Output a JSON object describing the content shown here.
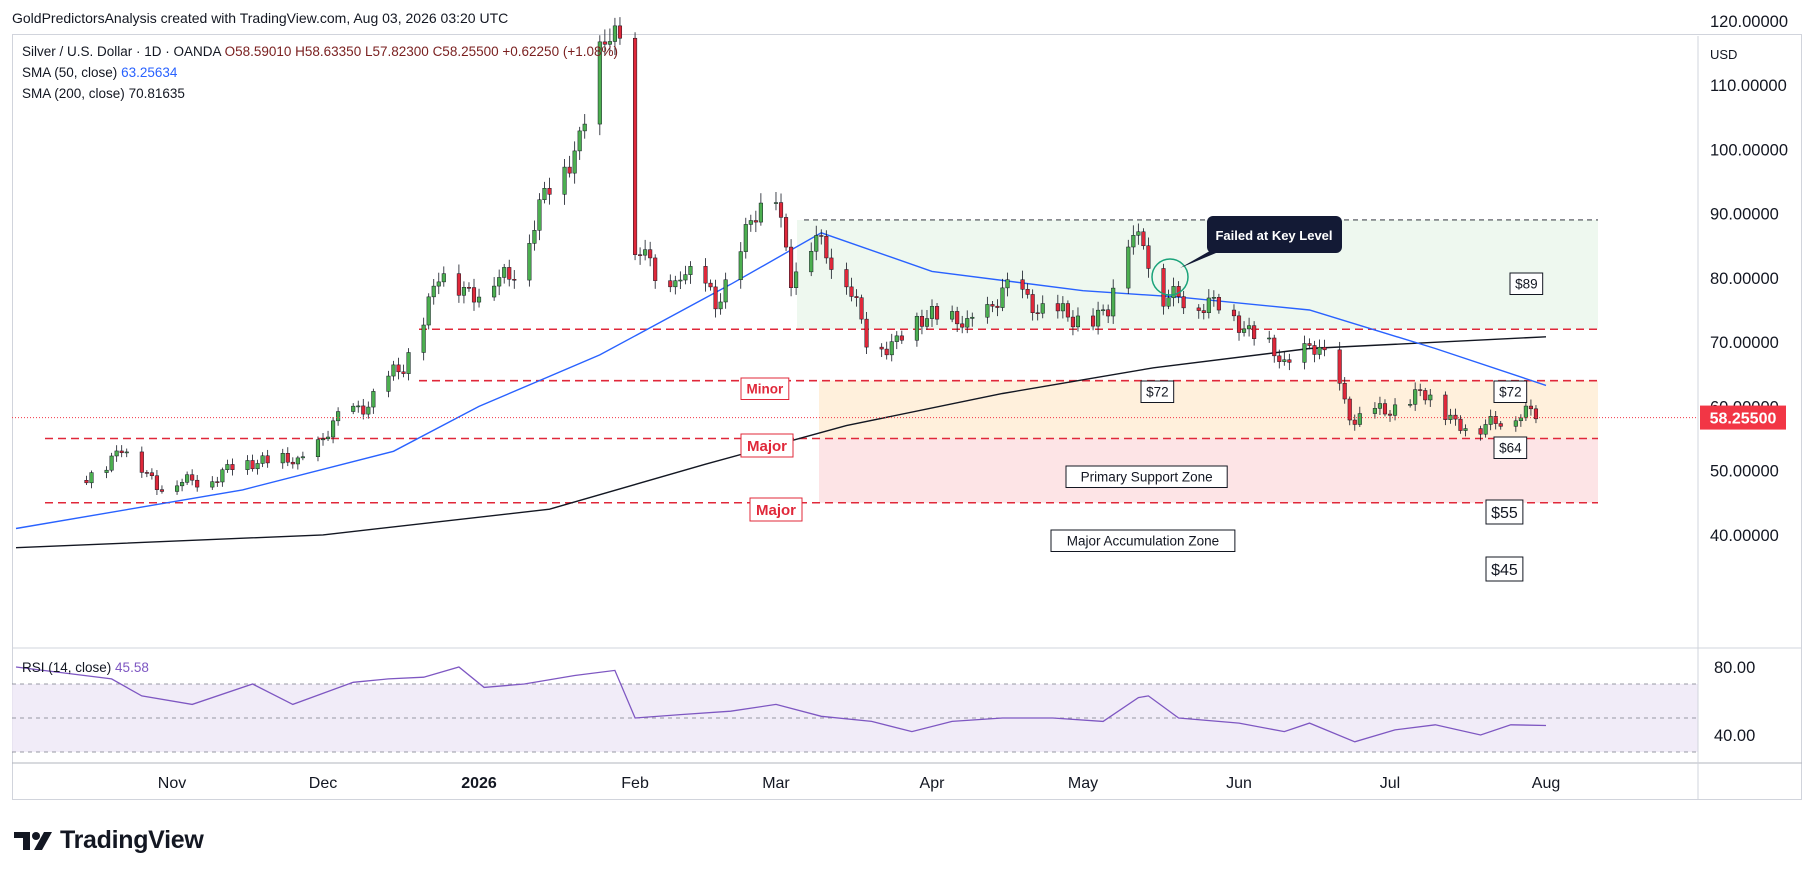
{
  "header": {
    "attribution": "GoldPredictorsAnalysis created with TradingView.com, Aug 03, 2026 03:20 UTC"
  },
  "legend": {
    "symbol": "Silver / U.S. Dollar · 1D · OANDA",
    "open": "O58.59010",
    "high": "H58.63350",
    "low": "L57.82300",
    "close": "C58.25500",
    "change": "+0.62250 (+1.08%)",
    "sma50_label": "SMA (50, close)",
    "sma50_value": "63.25634",
    "sma200_label": "SMA (200, close)",
    "sma200_value": "70.81635",
    "rsi_label": "RSI (14, close)",
    "rsi_value": "45.58"
  },
  "price_axis": {
    "currency": "USD",
    "ticks": [
      "120.00000",
      "110.00000",
      "100.00000",
      "90.00000",
      "80.00000",
      "70.00000",
      "60.00000",
      "50.00000",
      "40.00000"
    ],
    "last_price": "58.25500"
  },
  "rsi_axis": {
    "ticks": [
      "80.00",
      "40.00"
    ]
  },
  "time_axis": {
    "labels": [
      "Nov",
      "Dec",
      "2026",
      "Feb",
      "Mar",
      "Apr",
      "May",
      "Jun",
      "Jul",
      "Aug"
    ]
  },
  "annotations": {
    "minor": "Minor",
    "major_1": "Major",
    "major_2": "Major",
    "primary_zone": "Primary Support Zone",
    "accumulation_zone": "Major Accumulation Zone",
    "failed_callout": "Failed at Key Level",
    "p89": "$89",
    "p72_left": "$72",
    "p72_right": "$72",
    "p64": "$64",
    "p55": "$55",
    "p45": "$45"
  },
  "branding": {
    "name": "TradingView"
  },
  "colors": {
    "up": "#4caf50",
    "down": "#e0283a",
    "sma50": "#2962ff",
    "sma200": "#131722",
    "level": "#e0283a",
    "rsi": "#7e57c2"
  },
  "chart_data": {
    "type": "candlestick",
    "symbol": "Silver / U.S. Dollar",
    "interval": "1D",
    "y_range": [
      35,
      122
    ],
    "levels": [
      89,
      72,
      64,
      55,
      45
    ],
    "zones": [
      {
        "label": "Primary Support Zone",
        "from": 55,
        "to": 64
      },
      {
        "label": "Major Accumulation Zone",
        "from": 45,
        "to": 55
      }
    ],
    "price_path": [
      [
        "2025-10-15",
        48.5
      ],
      [
        "2025-10-22",
        53.5
      ],
      [
        "2025-10-29",
        48
      ],
      [
        "2025-11-05",
        48
      ],
      [
        "2025-11-12",
        50
      ],
      [
        "2025-11-19",
        52
      ],
      [
        "2025-11-26",
        51
      ],
      [
        "2025-12-03",
        57
      ],
      [
        "2025-12-10",
        61
      ],
      [
        "2025-12-17",
        66
      ],
      [
        "2025-12-24",
        80
      ],
      [
        "2025-12-31",
        78
      ],
      [
        "2026-01-07",
        80
      ],
      [
        "2026-01-14",
        92
      ],
      [
        "2026-01-21",
        102
      ],
      [
        "2026-01-26",
        117
      ],
      [
        "2026-01-29",
        118
      ],
      [
        "2026-01-30",
        80
      ],
      [
        "2026-02-03",
        85
      ],
      [
        "2026-02-06",
        74
      ],
      [
        "2026-02-10",
        82
      ],
      [
        "2026-02-17",
        76
      ],
      [
        "2026-02-24",
        88
      ],
      [
        "2026-03-01",
        94
      ],
      [
        "2026-03-04",
        80
      ],
      [
        "2026-03-09",
        86
      ],
      [
        "2026-03-14",
        82
      ],
      [
        "2026-03-19",
        70
      ],
      [
        "2026-03-25",
        70
      ],
      [
        "2026-04-01",
        75
      ],
      [
        "2026-04-08",
        72
      ],
      [
        "2026-04-15",
        78
      ],
      [
        "2026-04-22",
        76
      ],
      [
        "2026-04-29",
        73
      ],
      [
        "2026-05-06",
        75
      ],
      [
        "2026-05-10",
        86
      ],
      [
        "2026-05-13",
        87
      ],
      [
        "2026-05-16",
        76
      ],
      [
        "2026-05-22",
        77
      ],
      [
        "2026-05-29",
        75
      ],
      [
        "2026-06-05",
        71
      ],
      [
        "2026-06-10",
        66
      ],
      [
        "2026-06-15",
        70
      ],
      [
        "2026-06-19",
        66
      ],
      [
        "2026-06-24",
        58
      ],
      [
        "2026-06-30",
        59
      ],
      [
        "2026-07-07",
        62
      ],
      [
        "2026-07-14",
        58
      ],
      [
        "2026-07-19",
        56
      ],
      [
        "2026-07-24",
        59
      ],
      [
        "2026-08-01",
        58.255
      ]
    ],
    "sma50": [
      [
        "2025-10-01",
        41
      ],
      [
        "2025-11-15",
        47
      ],
      [
        "2025-12-15",
        53
      ],
      [
        "2026-01-01",
        60
      ],
      [
        "2026-01-25",
        68
      ],
      [
        "2026-02-20",
        79
      ],
      [
        "2026-03-10",
        87
      ],
      [
        "2026-04-01",
        81
      ],
      [
        "2026-05-01",
        78
      ],
      [
        "2026-05-20",
        77
      ],
      [
        "2026-06-15",
        75
      ],
      [
        "2026-07-10",
        69
      ],
      [
        "2026-08-01",
        63.26
      ]
    ],
    "sma200": [
      [
        "2025-10-01",
        38
      ],
      [
        "2025-12-01",
        40
      ],
      [
        "2026-01-15",
        44
      ],
      [
        "2026-02-15",
        51
      ],
      [
        "2026-03-15",
        57
      ],
      [
        "2026-04-15",
        62
      ],
      [
        "2026-05-15",
        66
      ],
      [
        "2026-06-15",
        69
      ],
      [
        "2026-08-01",
        70.82
      ]
    ],
    "rsi": [
      [
        "2025-10-01",
        80
      ],
      [
        "2025-10-20",
        73
      ],
      [
        "2025-10-26",
        63
      ],
      [
        "2025-11-05",
        58
      ],
      [
        "2025-11-17",
        70
      ],
      [
        "2025-11-25",
        58
      ],
      [
        "2025-12-07",
        71
      ],
      [
        "2025-12-14",
        73
      ],
      [
        "2025-12-21",
        74
      ],
      [
        "2025-12-28",
        80
      ],
      [
        "2026-01-02",
        68
      ],
      [
        "2026-01-10",
        70
      ],
      [
        "2026-01-20",
        75
      ],
      [
        "2026-01-28",
        78
      ],
      [
        "2026-02-01",
        50
      ],
      [
        "2026-02-10",
        52
      ],
      [
        "2026-02-20",
        54
      ],
      [
        "2026-03-01",
        58
      ],
      [
        "2026-03-10",
        51
      ],
      [
        "2026-03-20",
        48
      ],
      [
        "2026-03-28",
        42
      ],
      [
        "2026-04-05",
        48
      ],
      [
        "2026-04-15",
        50
      ],
      [
        "2026-04-25",
        50
      ],
      [
        "2026-05-05",
        48
      ],
      [
        "2026-05-12",
        62
      ],
      [
        "2026-05-14",
        63
      ],
      [
        "2026-05-20",
        50
      ],
      [
        "2026-06-01",
        47
      ],
      [
        "2026-06-10",
        42
      ],
      [
        "2026-06-15",
        47
      ],
      [
        "2026-06-24",
        36
      ],
      [
        "2026-07-02",
        43
      ],
      [
        "2026-07-10",
        46
      ],
      [
        "2026-07-19",
        40
      ],
      [
        "2026-07-25",
        46
      ],
      [
        "2026-08-01",
        45.58
      ]
    ],
    "rsi_range": [
      30,
      90
    ],
    "rsi_band": [
      30,
      70
    ]
  }
}
